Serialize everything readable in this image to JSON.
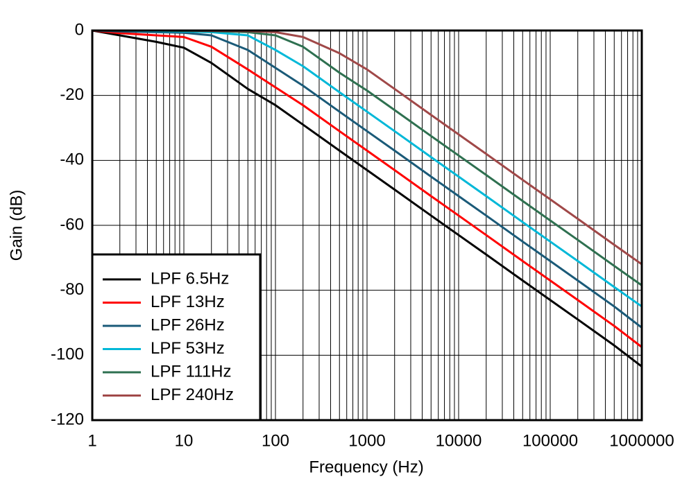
{
  "chart_data": {
    "type": "line",
    "x_label": "Frequency (Hz)",
    "y_label": "Gain (dB)",
    "x": [
      1,
      2,
      5,
      10,
      20,
      50,
      100,
      200,
      500,
      1000,
      2000,
      5000,
      10000,
      20000,
      50000,
      100000,
      200000,
      500000,
      1000000
    ],
    "series": [
      {
        "name": "LPF 6.5Hz",
        "color": "#000000",
        "values": [
          0,
          -1.5,
          -3.5,
          -5.3,
          -10,
          -18,
          -23,
          -29,
          -37,
          -43,
          -49,
          -57,
          -63,
          -69,
          -77,
          -83,
          -89,
          -97,
          -103.5
        ]
      },
      {
        "name": "LPF 13Hz",
        "color": "#ff0000",
        "values": [
          0,
          -0.8,
          -1.5,
          -2,
          -5,
          -12,
          -17.5,
          -23,
          -31,
          -37,
          -43,
          -51,
          -57,
          -63,
          -71,
          -77,
          -83,
          -91,
          -97.5
        ]
      },
      {
        "name": "LPF 26Hz",
        "color": "#1a5a78",
        "values": [
          0,
          -0.3,
          -0.5,
          -0.7,
          -1.5,
          -6,
          -11.5,
          -17,
          -25,
          -31,
          -37,
          -45,
          -51,
          -57,
          -65,
          -71,
          -77,
          -85,
          -91.5
        ]
      },
      {
        "name": "LPF 53Hz",
        "color": "#00b8d8",
        "values": [
          0,
          0,
          -0.2,
          -0.3,
          -0.5,
          -1.5,
          -6,
          -11,
          -19,
          -25,
          -31,
          -39,
          -45,
          -51,
          -59,
          -65,
          -71,
          -79,
          -85
        ]
      },
      {
        "name": "LPF 111Hz",
        "color": "#2e7050",
        "values": [
          0,
          0,
          0,
          -0.1,
          -0.2,
          -0.5,
          -1.5,
          -5,
          -13,
          -18.5,
          -24.5,
          -32.5,
          -38.5,
          -44.5,
          -52.5,
          -58.5,
          -64.5,
          -72.5,
          -78.5
        ]
      },
      {
        "name": "LPF 240Hz",
        "color": "#a04848",
        "values": [
          0,
          0,
          0,
          0,
          -0.1,
          -0.2,
          -0.5,
          -2,
          -7,
          -12,
          -18,
          -26,
          -32,
          -38,
          -46,
          -52,
          -58,
          -66,
          -72
        ]
      }
    ],
    "xlim": [
      1,
      1000000
    ],
    "xticks": [
      1,
      10,
      100,
      1000,
      10000,
      100000,
      1000000
    ],
    "x_log": true,
    "ylim": [
      -120,
      0
    ],
    "yticks": [
      -120,
      -100,
      -80,
      -60,
      -40,
      -20,
      0
    ],
    "grid": true,
    "legend": "lower left"
  }
}
